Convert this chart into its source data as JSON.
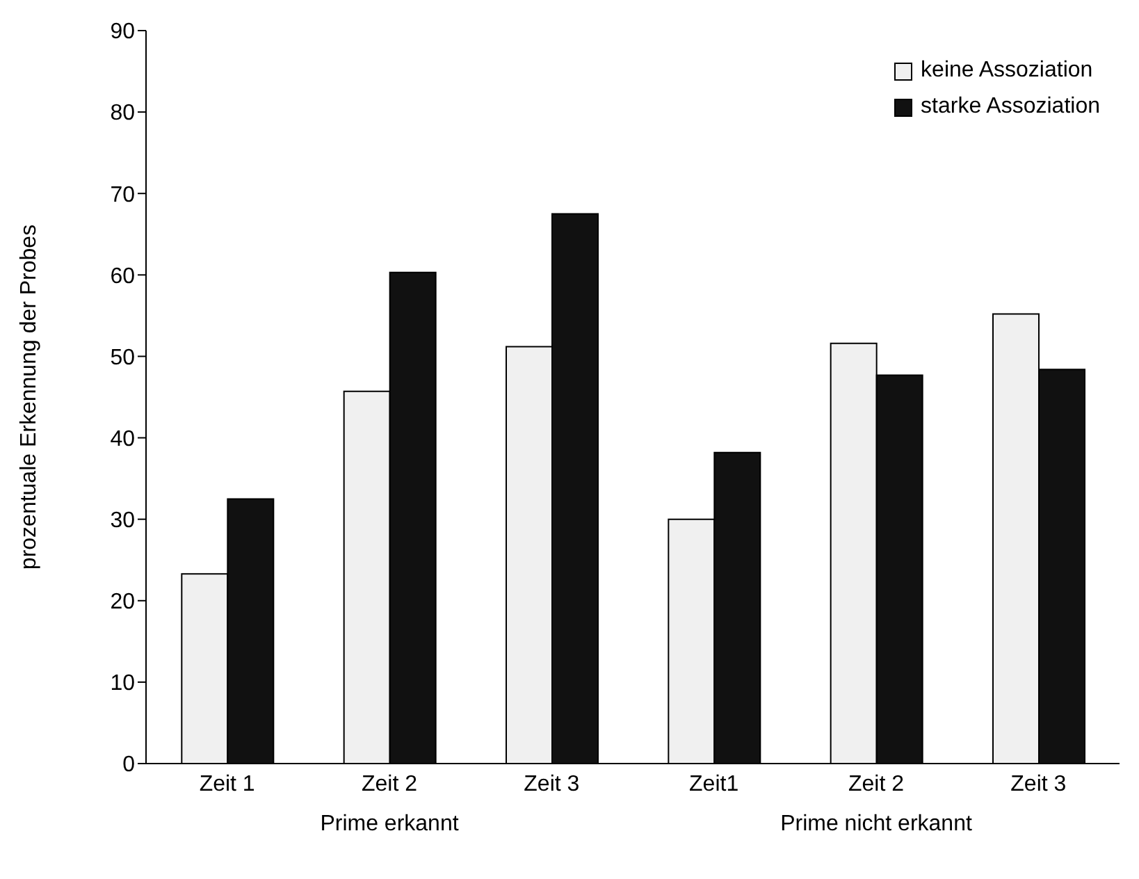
{
  "chart_data": {
    "type": "bar",
    "ylabel": "prozentuale Erkennung der Probes",
    "categories": [
      "Zeit 1",
      "Zeit 2",
      "Zeit 3",
      "Zeit1",
      "Zeit 2",
      "Zeit 3"
    ],
    "series": [
      {
        "name": "keine Assoziation",
        "color": "#f0f0f0",
        "values": [
          23.3,
          45.7,
          51.2,
          30,
          51.6,
          55.2
        ]
      },
      {
        "name": "starke Assoziation",
        "color": "#111111",
        "values": [
          32.5,
          60.3,
          67.5,
          38.2,
          47.7,
          48.4
        ]
      }
    ],
    "ylim": [
      0,
      90
    ],
    "yticks": [
      0,
      10,
      20,
      30,
      40,
      50,
      60,
      70,
      80,
      90
    ],
    "grid": false,
    "legend": "top right",
    "annotations": [
      "Prime erkannt",
      "Prime nicht erkannt"
    ]
  }
}
